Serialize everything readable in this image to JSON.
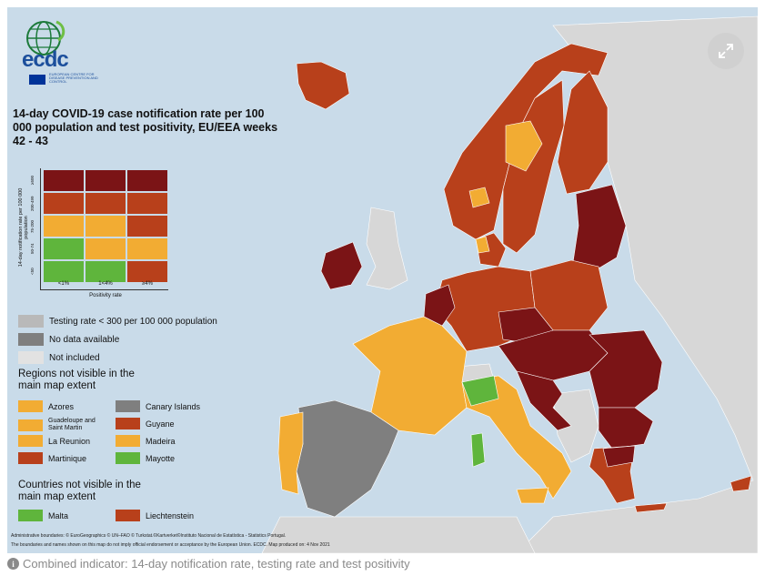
{
  "logo": {
    "text": "ecdc",
    "subtitle": "European Centre for Disease Prevention and Control"
  },
  "title": "14-day COVID-19 case notification rate per 100 000 population and test positivity, EU/EEA weeks 42 - 43",
  "matrix": {
    "y_axis_label": "14-day notification rate per 100 000 population",
    "x_axis_label": "Positivity rate",
    "row_labels": [
      "≥500",
      "200-499",
      "75-200",
      "50-74",
      "<50"
    ],
    "col_labels": [
      "<1%",
      "1<4%",
      "≥4%"
    ],
    "cells": [
      [
        "dark_red",
        "dark_red",
        "dark_red"
      ],
      [
        "red",
        "red",
        "red"
      ],
      [
        "orange",
        "orange",
        "red"
      ],
      [
        "green",
        "orange",
        "orange"
      ],
      [
        "green",
        "green",
        "red"
      ]
    ]
  },
  "colors": {
    "dark_red": "#7b1416",
    "red": "#b8401b",
    "orange": "#f2ac33",
    "green": "#5fb53c",
    "grey_testing": "#b9b9b9",
    "dark_grey": "#7f7f7f",
    "light_grey": "#e2e2e2",
    "sea": "#c9dbe9",
    "non_eu": "#d7d7d7"
  },
  "legend": {
    "testing_rate": "Testing rate < 300 per 100 000 population",
    "no_data": "No data available",
    "not_included": "Not included"
  },
  "regions_heading": "Regions not visible in the main map extent",
  "regions": [
    {
      "label": "Azores",
      "color": "orange"
    },
    {
      "label": "Canary Islands",
      "color": "dark_grey"
    },
    {
      "label": "Guadeloupe and Saint Martin",
      "color": "orange"
    },
    {
      "label": "Guyane",
      "color": "red"
    },
    {
      "label": "La Reunion",
      "color": "orange"
    },
    {
      "label": "Madeira",
      "color": "orange"
    },
    {
      "label": "Martinique",
      "color": "red"
    },
    {
      "label": "Mayotte",
      "color": "green"
    }
  ],
  "countries_heading": "Countries not visible in the main map extent",
  "countries": [
    {
      "label": "Malta",
      "color": "green"
    },
    {
      "label": "Liechtenstein",
      "color": "red"
    }
  ],
  "footer": {
    "line1": "Administrative boundaries: © EuroGeographics © UN–FAO © Turkstat.©Kartverket©Instituto Nacional de Estatística - Statistics Portugal.",
    "line2": "The boundaries and names shown on this map do not imply official endorsement or acceptance by the European Union. ECDC. Map produced on: 4 Nov 2021"
  },
  "caption": "Combined indicator: 14-day notification rate, testing rate and test positivity",
  "icons": {
    "expand": "expand-icon",
    "info": "info-icon"
  }
}
